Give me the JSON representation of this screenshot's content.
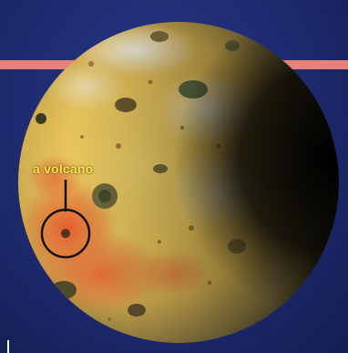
{
  "annotation": {
    "label": "a volcano"
  },
  "colors": {
    "background": "#1d2a6e",
    "stripe": "#e8807a",
    "label": "#ffe14a",
    "marker": "#111111"
  }
}
